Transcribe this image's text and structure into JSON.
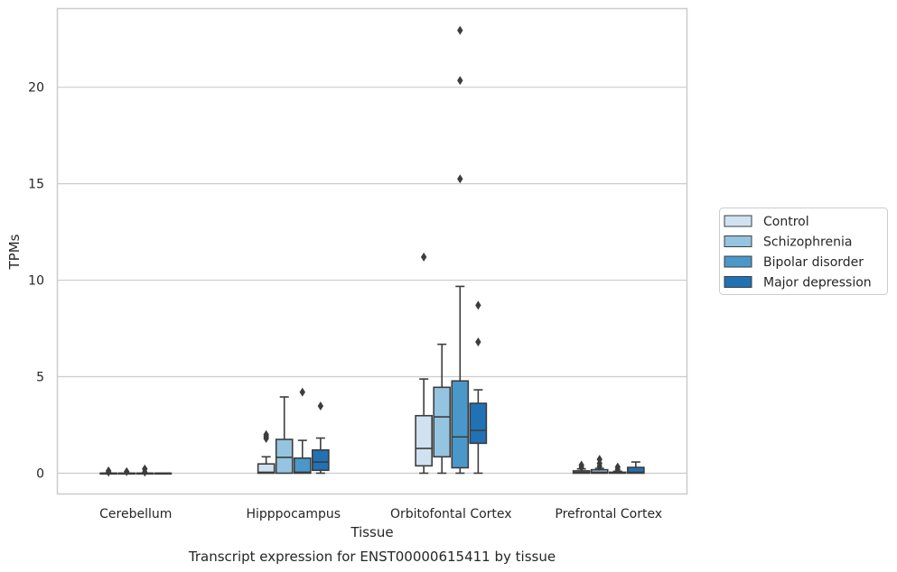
{
  "chart_data": {
    "type": "box",
    "xlabel": "Tissue",
    "ylabel": "TPMs",
    "caption": "Transcript expression for ENST00000615411 by tissue",
    "ylim": [
      -1.1,
      24.1
    ],
    "yticks": [
      0,
      5,
      10,
      15,
      20
    ],
    "grid": "horizontal",
    "legend_placement": "right",
    "categories": [
      "Cerebellum",
      "Hipppocampus",
      "Orbitofontal Cortex",
      "Prefrontal Cortex"
    ],
    "series": [
      {
        "name": "Control",
        "color": "#d0e1f2",
        "boxes": [
          {
            "q1": 0,
            "median": 0,
            "q3": 0,
            "whislo": 0,
            "whishi": 0,
            "fliers": [
              0.05,
              0.12
            ]
          },
          {
            "q1": 0,
            "median": 0.05,
            "q3": 0.48,
            "whislo": 0,
            "whishi": 0.85,
            "fliers": [
              1.8,
              1.9,
              2.0
            ]
          },
          {
            "q1": 0.38,
            "median": 1.28,
            "q3": 2.98,
            "whislo": 0,
            "whishi": 4.88,
            "fliers": [
              11.2
            ]
          },
          {
            "q1": 0,
            "median": 0.05,
            "q3": 0.12,
            "whislo": 0,
            "whishi": 0.22,
            "fliers": [
              0.3,
              0.42
            ]
          }
        ]
      },
      {
        "name": "Schizophrenia",
        "color": "#94c4df",
        "boxes": [
          {
            "q1": 0,
            "median": 0,
            "q3": 0,
            "whislo": 0,
            "whishi": 0,
            "fliers": [
              0.08
            ]
          },
          {
            "q1": 0,
            "median": 0.82,
            "q3": 1.75,
            "whislo": 0,
            "whishi": 3.95,
            "fliers": []
          },
          {
            "q1": 0.85,
            "median": 2.92,
            "q3": 4.45,
            "whislo": 0,
            "whishi": 6.68,
            "fliers": []
          },
          {
            "q1": 0,
            "median": 0.05,
            "q3": 0.18,
            "whislo": 0,
            "whishi": 0.25,
            "fliers": [
              0.35,
              0.5,
              0.72
            ]
          }
        ]
      },
      {
        "name": "Bipolar disorder",
        "color": "#4a98c9",
        "boxes": [
          {
            "q1": 0,
            "median": 0,
            "q3": 0,
            "whislo": 0,
            "whishi": 0,
            "fliers": [
              0.05,
              0.22
            ]
          },
          {
            "q1": 0,
            "median": 0.05,
            "q3": 0.78,
            "whislo": 0,
            "whishi": 1.7,
            "fliers": [
              4.2
            ]
          },
          {
            "q1": 0.28,
            "median": 1.88,
            "q3": 4.78,
            "whislo": 0,
            "whishi": 9.68,
            "fliers": [
              15.25,
              20.35,
              22.95
            ]
          },
          {
            "q1": 0,
            "median": 0.02,
            "q3": 0.05,
            "whislo": 0,
            "whishi": 0.1,
            "fliers": [
              0.2,
              0.32
            ]
          }
        ]
      },
      {
        "name": "Major depression",
        "color": "#2171b5",
        "boxes": [
          {
            "q1": 0,
            "median": 0,
            "q3": 0,
            "whislo": 0,
            "whishi": 0,
            "fliers": []
          },
          {
            "q1": 0.15,
            "median": 0.58,
            "q3": 1.2,
            "whislo": 0,
            "whishi": 1.82,
            "fliers": [
              3.48
            ]
          },
          {
            "q1": 1.55,
            "median": 2.22,
            "q3": 3.62,
            "whislo": 0,
            "whishi": 4.32,
            "fliers": [
              6.8,
              8.7
            ]
          },
          {
            "q1": 0,
            "median": 0.05,
            "q3": 0.3,
            "whislo": 0,
            "whishi": 0.58,
            "fliers": []
          }
        ]
      }
    ]
  }
}
